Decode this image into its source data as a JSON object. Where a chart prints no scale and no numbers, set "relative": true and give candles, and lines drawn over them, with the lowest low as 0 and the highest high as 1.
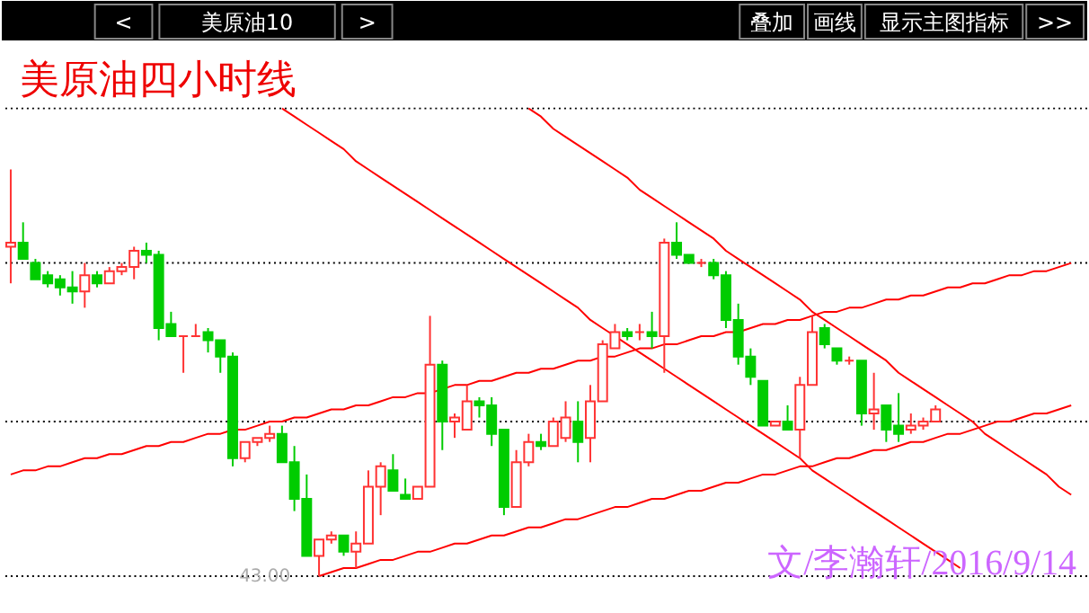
{
  "chart_data": {
    "type": "candlestick",
    "relative": true,
    "title": "美原油四小时线",
    "annotations": [
      "<",
      "美原油10",
      ">",
      "叠加",
      "画线",
      "显示主图指标",
      ">>",
      "43.00",
      "文/李瀚轩/2016/9/14"
    ],
    "categories": [
      null,
      null,
      null,
      null,
      null,
      null,
      null,
      null,
      null,
      null,
      null,
      null,
      null,
      null,
      null,
      null,
      null,
      null,
      null,
      null,
      null,
      null,
      null,
      null,
      null,
      null,
      null,
      null,
      null,
      null,
      null,
      null,
      null,
      null,
      null,
      null,
      null,
      null,
      null,
      null,
      null,
      null,
      null,
      null,
      null,
      null,
      null,
      null,
      null,
      null,
      null,
      null,
      null,
      null,
      null,
      null,
      null,
      null,
      null,
      null,
      null,
      null,
      null,
      null,
      null,
      null,
      null,
      null,
      null,
      null,
      null,
      null,
      null,
      null,
      null,
      null,
      null,
      null,
      null,
      null,
      null,
      null,
      null,
      null,
      null,
      null,
      null
    ],
    "ohlc": [
      [
        0.81,
        1.0,
        0.72,
        0.82
      ],
      [
        0.82,
        0.87,
        0.78,
        0.78
      ],
      [
        0.77,
        0.78,
        0.73,
        0.73
      ],
      [
        0.74,
        0.75,
        0.71,
        0.72
      ],
      [
        0.73,
        0.74,
        0.69,
        0.71
      ],
      [
        0.71,
        0.75,
        0.67,
        0.7
      ],
      [
        0.7,
        0.77,
        0.66,
        0.74
      ],
      [
        0.74,
        0.75,
        0.71,
        0.72
      ],
      [
        0.72,
        0.76,
        0.72,
        0.75
      ],
      [
        0.75,
        0.77,
        0.74,
        0.76
      ],
      [
        0.76,
        0.81,
        0.73,
        0.8
      ],
      [
        0.8,
        0.82,
        0.77,
        0.79
      ],
      [
        0.79,
        0.8,
        0.58,
        0.61
      ],
      [
        0.62,
        0.65,
        0.59,
        0.59
      ],
      [
        0.59,
        0.59,
        0.5,
        0.59
      ],
      [
        0.59,
        0.62,
        0.59,
        0.59
      ],
      [
        0.6,
        0.61,
        0.55,
        0.58
      ],
      [
        0.58,
        0.58,
        0.5,
        0.54
      ],
      [
        0.54,
        0.55,
        0.27,
        0.29
      ],
      [
        0.29,
        0.33,
        0.28,
        0.33
      ],
      [
        0.33,
        0.34,
        0.32,
        0.34
      ],
      [
        0.34,
        0.37,
        0.33,
        0.35
      ],
      [
        0.35,
        0.37,
        0.28,
        0.28
      ],
      [
        0.28,
        0.32,
        0.16,
        0.19
      ],
      [
        0.19,
        0.25,
        0.05,
        0.05
      ],
      [
        0.05,
        0.09,
        0.0,
        0.09
      ],
      [
        0.09,
        0.11,
        0.08,
        0.1
      ],
      [
        0.1,
        0.1,
        0.05,
        0.06
      ],
      [
        0.06,
        0.11,
        0.02,
        0.08
      ],
      [
        0.08,
        0.26,
        0.08,
        0.22
      ],
      [
        0.22,
        0.28,
        0.15,
        0.27
      ],
      [
        0.26,
        0.3,
        0.21,
        0.21
      ],
      [
        0.2,
        0.24,
        0.19,
        0.19
      ],
      [
        0.19,
        0.22,
        0.19,
        0.22
      ],
      [
        0.22,
        0.64,
        0.22,
        0.52
      ],
      [
        0.52,
        0.53,
        0.31,
        0.38
      ],
      [
        0.38,
        0.4,
        0.34,
        0.39
      ],
      [
        0.36,
        0.47,
        0.36,
        0.43
      ],
      [
        0.43,
        0.44,
        0.39,
        0.42
      ],
      [
        0.42,
        0.44,
        0.32,
        0.35
      ],
      [
        0.36,
        0.36,
        0.15,
        0.17
      ],
      [
        0.17,
        0.31,
        0.17,
        0.28
      ],
      [
        0.28,
        0.35,
        0.27,
        0.33
      ],
      [
        0.33,
        0.35,
        0.31,
        0.32
      ],
      [
        0.32,
        0.39,
        0.32,
        0.38
      ],
      [
        0.34,
        0.43,
        0.33,
        0.39
      ],
      [
        0.38,
        0.43,
        0.28,
        0.33
      ],
      [
        0.34,
        0.47,
        0.28,
        0.43
      ],
      [
        0.43,
        0.58,
        0.43,
        0.57
      ],
      [
        0.56,
        0.62,
        0.56,
        0.6
      ],
      [
        0.6,
        0.61,
        0.58,
        0.59
      ],
      [
        0.6,
        0.62,
        0.58,
        0.6
      ],
      [
        0.6,
        0.65,
        0.56,
        0.59
      ],
      [
        0.59,
        0.83,
        0.5,
        0.82
      ],
      [
        0.82,
        0.87,
        0.78,
        0.79
      ],
      [
        0.79,
        0.79,
        0.77,
        0.77
      ],
      [
        0.77,
        0.78,
        0.76,
        0.77
      ],
      [
        0.77,
        0.78,
        0.73,
        0.74
      ],
      [
        0.74,
        0.75,
        0.61,
        0.63
      ],
      [
        0.63,
        0.67,
        0.52,
        0.54
      ],
      [
        0.54,
        0.56,
        0.47,
        0.49
      ],
      [
        0.48,
        0.48,
        0.37,
        0.37
      ],
      [
        0.37,
        0.38,
        0.37,
        0.38
      ],
      [
        0.38,
        0.42,
        0.36,
        0.36
      ],
      [
        0.36,
        0.49,
        0.29,
        0.47
      ],
      [
        0.47,
        0.64,
        0.47,
        0.6
      ],
      [
        0.61,
        0.62,
        0.56,
        0.57
      ],
      [
        0.56,
        0.56,
        0.52,
        0.53
      ],
      [
        0.53,
        0.54,
        0.52,
        0.53
      ],
      [
        0.53,
        0.53,
        0.37,
        0.4
      ],
      [
        0.4,
        0.5,
        0.36,
        0.41
      ],
      [
        0.42,
        0.42,
        0.33,
        0.36
      ],
      [
        0.37,
        0.45,
        0.33,
        0.35
      ],
      [
        0.36,
        0.4,
        0.35,
        0.37
      ],
      [
        0.37,
        0.39,
        0.36,
        0.38
      ],
      [
        0.38,
        0.42,
        0.38,
        0.41
      ],
      null,
      null,
      null,
      null,
      null,
      null,
      null,
      null,
      null,
      null,
      null
    ],
    "series": [
      {
        "type": "line",
        "color": "#ff0000",
        "values": [
          0.25,
          0.26,
          0.26,
          0.27,
          0.27,
          0.28,
          0.29,
          0.29,
          0.3,
          0.3,
          0.31,
          0.32,
          0.32,
          0.33,
          0.33,
          0.34,
          0.35,
          0.35,
          0.36,
          0.36,
          0.37,
          0.38,
          0.38,
          0.39,
          0.39,
          0.4,
          0.41,
          0.41,
          0.42,
          0.42,
          0.43,
          0.44,
          0.44,
          0.45,
          0.45,
          0.46,
          0.47,
          0.47,
          0.48,
          0.48,
          0.49,
          0.5,
          0.5,
          0.51,
          0.51,
          0.52,
          0.53,
          0.53,
          0.54,
          0.54,
          0.55,
          0.56,
          0.56,
          0.57,
          0.57,
          0.58,
          0.59,
          0.59,
          0.6,
          0.6,
          0.61,
          0.62,
          0.62,
          0.63,
          0.63,
          0.64,
          0.65,
          0.65,
          0.66,
          0.66,
          0.67,
          0.68,
          0.68,
          0.69,
          0.69,
          0.7,
          0.71,
          0.71,
          0.72,
          0.72,
          0.73,
          0.74,
          0.74,
          0.75,
          0.75,
          0.76,
          0.77
        ]
      },
      {
        "type": "line",
        "color": "#ff0000",
        "values": [
          null,
          null,
          null,
          null,
          null,
          null,
          null,
          null,
          null,
          null,
          null,
          null,
          null,
          null,
          null,
          null,
          null,
          null,
          null,
          null,
          null,
          null,
          null,
          null,
          null,
          0.0,
          0.01,
          0.02,
          0.02,
          0.03,
          0.04,
          0.04,
          0.05,
          0.06,
          0.06,
          0.07,
          0.08,
          0.08,
          0.09,
          0.1,
          0.1,
          0.11,
          0.12,
          0.12,
          0.13,
          0.14,
          0.14,
          0.15,
          0.16,
          0.17,
          0.17,
          0.18,
          0.19,
          0.19,
          0.2,
          0.21,
          0.21,
          0.22,
          0.23,
          0.23,
          0.24,
          0.25,
          0.25,
          0.26,
          0.27,
          0.27,
          0.28,
          0.29,
          0.29,
          0.3,
          0.31,
          0.31,
          0.32,
          0.33,
          0.33,
          0.34,
          0.35,
          0.35,
          0.36,
          0.37,
          0.38,
          0.38,
          0.39,
          0.4,
          0.4,
          0.41,
          0.42
        ]
      },
      {
        "type": "line",
        "color": "#ff0000",
        "values": [
          null,
          null,
          null,
          null,
          null,
          null,
          null,
          null,
          null,
          null,
          null,
          null,
          null,
          null,
          null,
          null,
          null,
          null,
          null,
          null,
          null,
          null,
          1.15,
          1.13,
          1.11,
          1.09,
          1.07,
          1.05,
          1.02,
          1.0,
          0.98,
          0.96,
          0.94,
          0.92,
          0.9,
          0.88,
          0.86,
          0.84,
          0.82,
          0.8,
          0.78,
          0.76,
          0.74,
          0.72,
          0.7,
          0.68,
          0.66,
          0.63,
          0.61,
          0.59,
          0.57,
          0.55,
          0.53,
          0.51,
          0.49,
          0.47,
          0.45,
          0.43,
          0.41,
          0.39,
          0.37,
          0.35,
          0.33,
          0.31,
          0.29,
          0.26,
          0.24,
          0.22,
          0.2,
          0.18,
          0.16,
          0.14,
          0.12,
          0.1,
          0.08,
          0.06,
          0.04,
          0.02,
          null,
          null,
          null,
          null,
          null,
          null,
          null,
          null,
          null
        ]
      },
      {
        "type": "line",
        "color": "#ff0000",
        "values": [
          null,
          null,
          null,
          null,
          null,
          null,
          null,
          null,
          null,
          null,
          null,
          null,
          null,
          null,
          null,
          null,
          null,
          null,
          null,
          null,
          null,
          null,
          null,
          null,
          null,
          null,
          null,
          null,
          null,
          null,
          null,
          null,
          null,
          null,
          null,
          null,
          null,
          null,
          null,
          null,
          null,
          null,
          1.15,
          1.13,
          1.1,
          1.08,
          1.06,
          1.04,
          1.02,
          1.0,
          0.98,
          0.95,
          0.93,
          0.91,
          0.89,
          0.87,
          0.85,
          0.83,
          0.8,
          0.78,
          0.76,
          0.74,
          0.72,
          0.7,
          0.68,
          0.65,
          0.63,
          0.61,
          0.59,
          0.57,
          0.55,
          0.53,
          0.5,
          0.48,
          0.46,
          0.44,
          0.42,
          0.4,
          0.38,
          0.35,
          0.33,
          0.31,
          0.29,
          0.27,
          0.25,
          0.22,
          0.2
        ]
      }
    ],
    "ref_lines": [
      {
        "axis": "y",
        "value": 1.15,
        "color": "#000000",
        "line_style": "dotted"
      },
      {
        "axis": "y",
        "value": 0.77,
        "color": "#000000",
        "line_style": "dotted"
      },
      {
        "axis": "y",
        "value": 0.38,
        "color": "#000000",
        "line_style": "dotted"
      },
      {
        "axis": "y",
        "value": 0.0,
        "color": "#000000",
        "line_style": "dotted"
      }
    ]
  }
}
